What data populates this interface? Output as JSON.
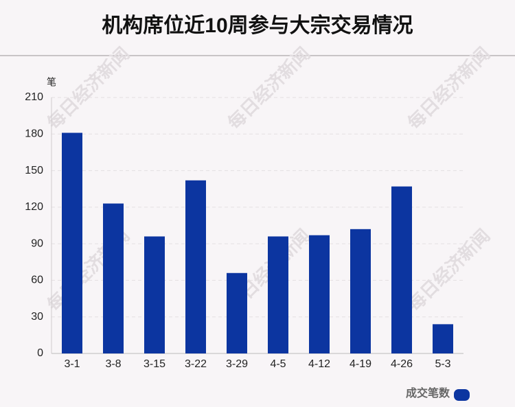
{
  "chart_data": {
    "type": "bar",
    "title": "机构席位近10周参与大宗交易情况",
    "y_label": "笔",
    "watermark": "每日经济新闻",
    "categories": [
      "3-1",
      "3-8",
      "3-15",
      "3-22",
      "3-29",
      "4-5",
      "4-12",
      "4-19",
      "4-26",
      "5-3"
    ],
    "series": [
      {
        "name": "成交笔数",
        "color": "#0c35a0",
        "values": [
          181,
          123,
          96,
          142,
          66,
          96,
          97,
          102,
          137,
          24
        ]
      }
    ],
    "ylim": [
      0,
      210
    ],
    "yticks": [
      0,
      30,
      60,
      90,
      120,
      150,
      180,
      210
    ],
    "grid": true,
    "legend": "bottom-right"
  }
}
